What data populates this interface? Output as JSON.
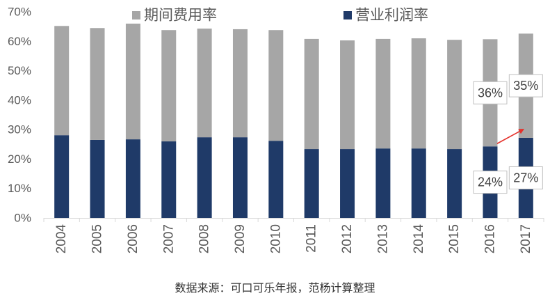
{
  "chart_data": {
    "type": "bar",
    "stacked": true,
    "categories": [
      "2004",
      "2005",
      "2006",
      "2007",
      "2008",
      "2009",
      "2010",
      "2011",
      "2012",
      "2013",
      "2014",
      "2015",
      "2016",
      "2017"
    ],
    "series": [
      {
        "name": "营业利润率",
        "color": "#1f3a68",
        "values": [
          28.1,
          26.5,
          26.7,
          26.0,
          27.4,
          27.4,
          26.2,
          23.4,
          23.4,
          23.6,
          23.6,
          23.4,
          24.3,
          27.2
        ]
      },
      {
        "name": "期间费用率",
        "color": "#a6a6a6",
        "values": [
          37.1,
          38.0,
          39.3,
          37.8,
          36.9,
          36.7,
          37.6,
          37.4,
          36.9,
          37.2,
          37.4,
          37.1,
          36.4,
          35.4
        ]
      }
    ],
    "ylim": [
      0,
      70
    ],
    "yticks": [
      {
        "value": 0,
        "label": "0%"
      },
      {
        "value": 10,
        "label": "10%"
      },
      {
        "value": 20,
        "label": "20%"
      },
      {
        "value": 30,
        "label": "30%"
      },
      {
        "value": 40,
        "label": "40%"
      },
      {
        "value": 50,
        "label": "50%"
      },
      {
        "value": 60,
        "label": "60%"
      },
      {
        "value": 70,
        "label": "70%"
      }
    ],
    "grid": false,
    "legend": "top",
    "data_labels": [
      {
        "category_index": 12,
        "series_index": 1,
        "text": "36%"
      },
      {
        "category_index": 13,
        "series_index": 1,
        "text": "35%"
      },
      {
        "category_index": 12,
        "series_index": 0,
        "text": "24%"
      },
      {
        "category_index": 13,
        "series_index": 0,
        "text": "27%"
      }
    ],
    "arrows": [
      {
        "from_index": 12,
        "to_index": 13,
        "series_index": 0,
        "color": "#e5312b"
      }
    ]
  },
  "source_note": "数据来源：可口可乐年报，范杨计算整理"
}
